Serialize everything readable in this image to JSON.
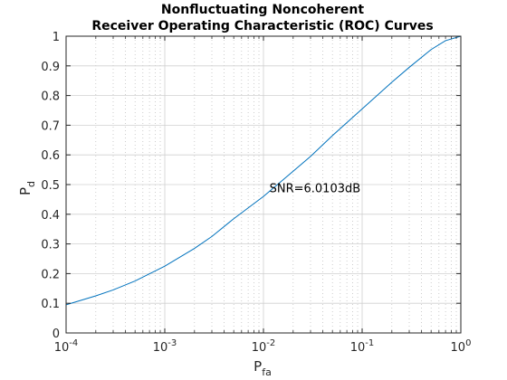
{
  "chart_data": {
    "type": "line",
    "title": [
      "Nonfluctuating Noncoherent",
      "Receiver Operating Characteristic (ROC) Curves"
    ],
    "xlabel": {
      "base": "P",
      "sub": "fa"
    },
    "ylabel": {
      "base": "P",
      "sub": "d"
    },
    "xscale": "log",
    "xlim": [
      0.0001,
      1
    ],
    "ylim": [
      0,
      1
    ],
    "x_ticks": [
      {
        "value": 0.0001,
        "mantissa": "10",
        "exponent": "-4"
      },
      {
        "value": 0.001,
        "mantissa": "10",
        "exponent": "-3"
      },
      {
        "value": 0.01,
        "mantissa": "10",
        "exponent": "-2"
      },
      {
        "value": 0.1,
        "mantissa": "10",
        "exponent": "-1"
      },
      {
        "value": 1,
        "mantissa": "10",
        "exponent": "0"
      }
    ],
    "y_ticks": [
      "0",
      "0.1",
      "0.2",
      "0.3",
      "0.4",
      "0.5",
      "0.6",
      "0.7",
      "0.8",
      "0.9",
      "1"
    ],
    "grid": {
      "major": true,
      "minor": true
    },
    "series": [
      {
        "color": "#0072bd",
        "points": [
          [
            0.0001,
            0.095
          ],
          [
            0.0002,
            0.125
          ],
          [
            0.0003,
            0.145
          ],
          [
            0.0005,
            0.175
          ],
          [
            0.001,
            0.225
          ],
          [
            0.002,
            0.285
          ],
          [
            0.003,
            0.325
          ],
          [
            0.005,
            0.385
          ],
          [
            0.01,
            0.46
          ],
          [
            0.02,
            0.545
          ],
          [
            0.03,
            0.595
          ],
          [
            0.05,
            0.665
          ],
          [
            0.1,
            0.755
          ],
          [
            0.2,
            0.845
          ],
          [
            0.3,
            0.895
          ],
          [
            0.5,
            0.955
          ],
          [
            0.7,
            0.985
          ],
          [
            1.0,
            1.0
          ]
        ]
      }
    ],
    "annotations": [
      {
        "text": "SNR=6.0103dB",
        "x": 0.0115,
        "y": 0.49
      }
    ]
  }
}
